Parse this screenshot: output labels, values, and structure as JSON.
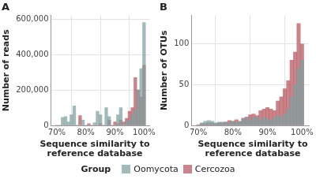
{
  "chart_data": [
    {
      "type": "histogram",
      "title": "A",
      "y_label": "Number of reads",
      "x_label": "Sequence similarity to reference database",
      "bins": [
        69.5,
        70.5,
        71.5,
        72.5,
        73.5,
        74.5,
        75.5,
        76.5,
        77.5,
        78.5,
        79.5,
        80.5,
        81.5,
        82.5,
        83.5,
        84.5,
        85.5,
        86.5,
        87.5,
        88.5,
        89.5,
        90.5,
        91.5,
        92.5,
        93.5,
        94.5,
        95.5,
        96.5,
        97.5,
        98.5,
        99.5,
        100.5
      ],
      "series": [
        {
          "name": "Oomycota",
          "color": "#7f9f9f",
          "values": [
            0,
            0,
            45000,
            50000,
            20000,
            60000,
            110000,
            0,
            0,
            30000,
            0,
            0,
            0,
            15000,
            80000,
            60000,
            0,
            100000,
            50000,
            0,
            0,
            60000,
            100000,
            0,
            20000,
            30000,
            60000,
            90000,
            200000,
            320000,
            580000
          ]
        },
        {
          "name": "Cercozoa",
          "color": "#b5545c",
          "values": [
            0,
            0,
            0,
            0,
            0,
            0,
            0,
            0,
            55000,
            0,
            0,
            10000,
            0,
            0,
            0,
            10000,
            0,
            0,
            30000,
            0,
            20000,
            10000,
            30000,
            20000,
            40000,
            80000,
            100000,
            270000,
            200000,
            160000,
            340000
          ]
        }
      ],
      "xlim": [
        68,
        102
      ],
      "xticks": [
        {
          "value": 70,
          "label": "70%"
        },
        {
          "value": 80,
          "label": "80%"
        },
        {
          "value": 90,
          "label": "90%"
        },
        {
          "value": 100,
          "label": "100%"
        }
      ],
      "ylim": [
        0,
        620000
      ],
      "yticks": [
        0,
        {
          "value": 200000,
          "label": "200,000"
        },
        {
          "value": 400000,
          "label": "400,000"
        },
        {
          "value": 600000,
          "label": "600,000"
        }
      ],
      "grid": true
    },
    {
      "type": "histogram",
      "title": "B",
      "y_label": "Number of OTUs",
      "x_label": "Sequence similarity to reference database",
      "bins": [
        69.5,
        70.5,
        71.5,
        72.5,
        73.5,
        74.5,
        75.5,
        76.5,
        77.5,
        78.5,
        79.5,
        80.5,
        81.5,
        82.5,
        83.5,
        84.5,
        85.5,
        86.5,
        87.5,
        88.5,
        89.5,
        90.5,
        91.5,
        92.5,
        93.5,
        94.5,
        95.5,
        96.5,
        97.5,
        98.5,
        99.5,
        100.5
      ],
      "series": [
        {
          "name": "Oomycota",
          "color": "#7f9f9f",
          "values": [
            0,
            3,
            5,
            6,
            5,
            3,
            4,
            4,
            4,
            3,
            5,
            4,
            4,
            8,
            10,
            6,
            10,
            10,
            6,
            10,
            8,
            6,
            10,
            12,
            10,
            14,
            20,
            35,
            50,
            70,
            80
          ]
        },
        {
          "name": "Cercozoa",
          "color": "#b5545c",
          "values": [
            1,
            2,
            2,
            3,
            3,
            2,
            3,
            3,
            4,
            6,
            5,
            7,
            5,
            9,
            10,
            13,
            14,
            12,
            18,
            20,
            22,
            20,
            18,
            30,
            35,
            45,
            55,
            80,
            90,
            125,
            100
          ]
        }
      ],
      "xlim": [
        68,
        102
      ],
      "xticks": [
        {
          "value": 70,
          "label": "70%"
        },
        {
          "value": 80,
          "label": "80%"
        },
        {
          "value": 90,
          "label": "90%"
        },
        {
          "value": 100,
          "label": "100%"
        }
      ],
      "ylim": [
        0,
        135
      ],
      "yticks": [
        0,
        50,
        100
      ],
      "grid": true
    }
  ],
  "legend": "bottom",
  "legend_title": "Group"
}
